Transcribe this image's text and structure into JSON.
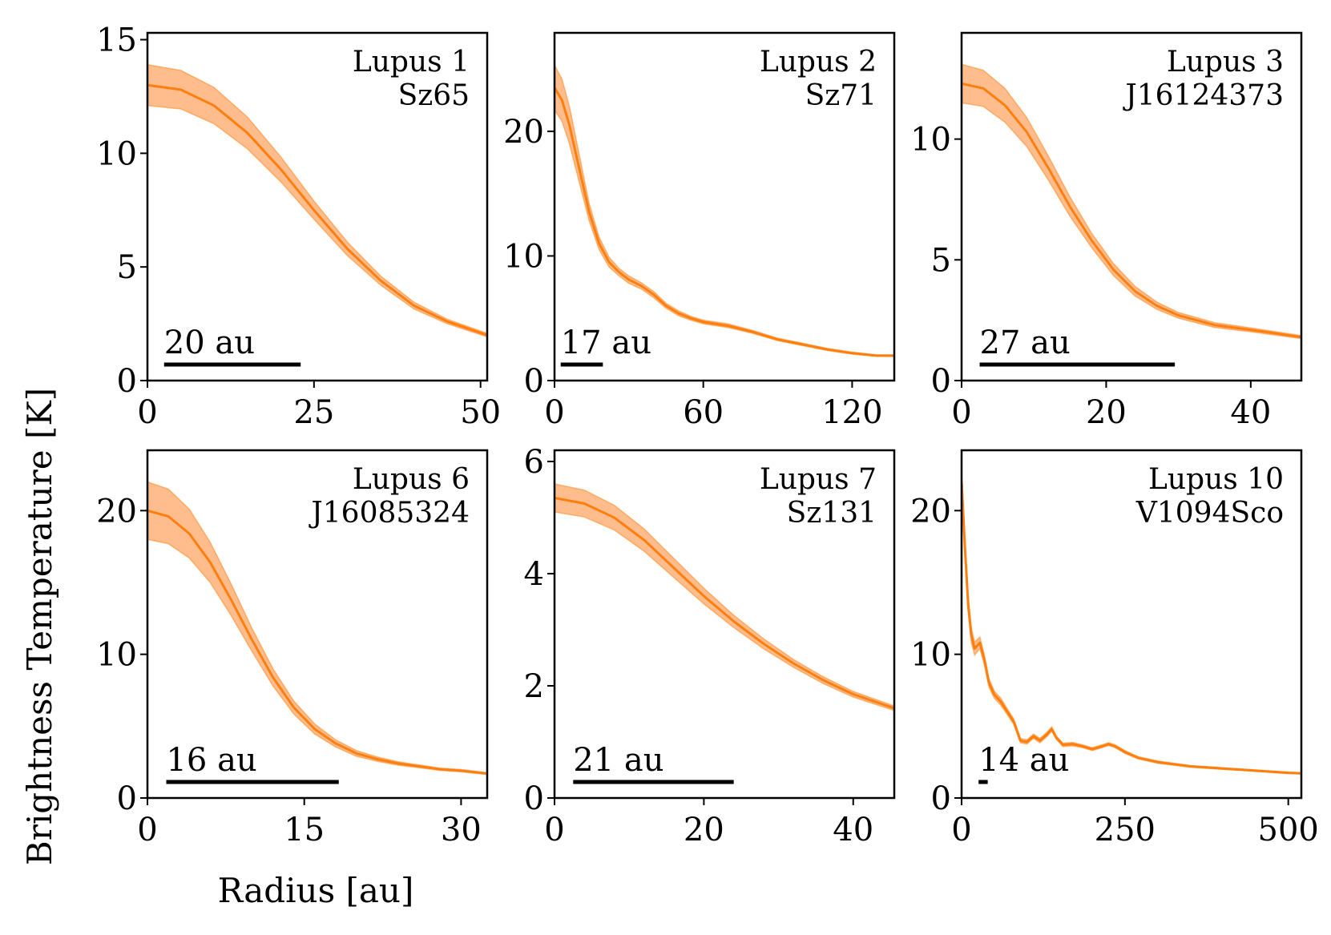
{
  "figure": {
    "ylabel": "Brightness Temperature [K]",
    "xlabel": "Radius [au]"
  },
  "colors": {
    "line": "#ff7f0e",
    "band": "#ffb27a",
    "axes": "#000000"
  },
  "chart_data": [
    {
      "type": "line",
      "title_lines": [
        "Lupus 1",
        "Sz65"
      ],
      "scalebar": {
        "label": "20 au",
        "x_start": 2.5,
        "x_end": 23
      },
      "xlim": [
        0,
        51
      ],
      "ylim": [
        0,
        15.3
      ],
      "xticks": [
        0,
        25,
        50
      ],
      "yticks": [
        0,
        5,
        10,
        15
      ],
      "x": [
        0,
        5,
        10,
        15,
        20,
        25,
        30,
        35,
        40,
        45,
        51
      ],
      "y": [
        13.0,
        12.8,
        12.1,
        10.9,
        9.3,
        7.5,
        5.8,
        4.4,
        3.3,
        2.6,
        2.0
      ],
      "band": [
        0.9,
        0.85,
        0.8,
        0.7,
        0.55,
        0.4,
        0.3,
        0.2,
        0.15,
        0.1,
        0.08
      ]
    },
    {
      "type": "line",
      "title_lines": [
        "Lupus 2",
        "Sz71"
      ],
      "scalebar": {
        "label": "17 au",
        "x_start": 2.5,
        "x_end": 19.5
      },
      "xlim": [
        0,
        137
      ],
      "ylim": [
        0,
        27.9
      ],
      "xticks": [
        0,
        60,
        120
      ],
      "yticks": [
        0,
        10,
        20
      ],
      "x": [
        0,
        3,
        6,
        10,
        14,
        18,
        22,
        26,
        30,
        35,
        40,
        45,
        50,
        55,
        60,
        70,
        80,
        90,
        100,
        110,
        120,
        130,
        137
      ],
      "y": [
        23.5,
        22.5,
        20.5,
        17.0,
        13.5,
        11.0,
        9.5,
        8.7,
        8.1,
        7.6,
        6.9,
        6.0,
        5.4,
        5.0,
        4.7,
        4.4,
        3.9,
        3.3,
        2.9,
        2.5,
        2.2,
        2.0,
        2.0
      ],
      "band": [
        1.8,
        1.7,
        1.5,
        1.1,
        0.7,
        0.5,
        0.4,
        0.3,
        0.3,
        0.25,
        0.25,
        0.2,
        0.2,
        0.15,
        0.15,
        0.15,
        0.12,
        0.1,
        0.1,
        0.08,
        0.08,
        0.06,
        0.06
      ]
    },
    {
      "type": "line",
      "title_lines": [
        "Lupus 3",
        "J16124373"
      ],
      "scalebar": {
        "label": "27 au",
        "x_start": 2.5,
        "x_end": 29.5
      },
      "xlim": [
        0,
        47
      ],
      "ylim": [
        0,
        14.4
      ],
      "xticks": [
        0,
        20,
        40
      ],
      "yticks": [
        0,
        5,
        10
      ],
      "x": [
        0,
        3,
        6,
        9,
        12,
        15,
        18,
        21,
        24,
        27,
        30,
        35,
        40,
        47
      ],
      "y": [
        12.3,
        12.1,
        11.4,
        10.3,
        8.8,
        7.2,
        5.8,
        4.6,
        3.7,
        3.1,
        2.7,
        2.3,
        2.1,
        1.8
      ],
      "band": [
        0.8,
        0.75,
        0.7,
        0.6,
        0.5,
        0.4,
        0.3,
        0.25,
        0.2,
        0.15,
        0.12,
        0.1,
        0.08,
        0.06
      ]
    },
    {
      "type": "line",
      "title_lines": [
        "Lupus 6",
        "J16085324"
      ],
      "scalebar": {
        "label": "16 au",
        "x_start": 1.8,
        "x_end": 18.3
      },
      "xlim": [
        0,
        32.5
      ],
      "ylim": [
        0,
        24.2
      ],
      "xticks": [
        0,
        15,
        30
      ],
      "yticks": [
        0,
        10,
        20
      ],
      "x": [
        0,
        2,
        4,
        6,
        8,
        10,
        12,
        14,
        16,
        18,
        20,
        22,
        24,
        26,
        28,
        30,
        32.5
      ],
      "y": [
        20.0,
        19.6,
        18.4,
        16.4,
        13.8,
        11.0,
        8.4,
        6.3,
        4.8,
        3.8,
        3.1,
        2.7,
        2.4,
        2.2,
        2.0,
        1.9,
        1.7
      ],
      "band": [
        2.0,
        1.9,
        1.7,
        1.4,
        1.1,
        0.8,
        0.6,
        0.45,
        0.35,
        0.25,
        0.2,
        0.15,
        0.12,
        0.1,
        0.08,
        0.08,
        0.06
      ]
    },
    {
      "type": "line",
      "title_lines": [
        "Lupus 7",
        "Sz131"
      ],
      "scalebar": {
        "label": "21 au",
        "x_start": 2.5,
        "x_end": 24
      },
      "xlim": [
        0,
        45.5
      ],
      "ylim": [
        0,
        6.2
      ],
      "xticks": [
        0,
        20,
        40
      ],
      "yticks": [
        0,
        2,
        4,
        6
      ],
      "x": [
        0,
        4,
        8,
        12,
        16,
        20,
        24,
        28,
        32,
        36,
        40,
        45.5
      ],
      "y": [
        5.35,
        5.25,
        5.0,
        4.6,
        4.1,
        3.6,
        3.15,
        2.75,
        2.4,
        2.1,
        1.85,
        1.6
      ],
      "band": [
        0.25,
        0.24,
        0.22,
        0.2,
        0.17,
        0.14,
        0.11,
        0.09,
        0.07,
        0.06,
        0.05,
        0.04
      ]
    },
    {
      "type": "line",
      "title_lines": [
        "Lupus 10",
        "V1094Sco"
      ],
      "scalebar": {
        "label": "14 au",
        "x_start": 26,
        "x_end": 40
      },
      "xlim": [
        0,
        520
      ],
      "ylim": [
        0,
        24.2
      ],
      "xticks": [
        0,
        250,
        500
      ],
      "yticks": [
        0,
        10,
        20
      ],
      "x": [
        0,
        5,
        10,
        15,
        20,
        28,
        35,
        42,
        50,
        60,
        70,
        80,
        90,
        100,
        110,
        120,
        130,
        138,
        145,
        155,
        170,
        185,
        200,
        215,
        225,
        235,
        250,
        270,
        300,
        350,
        400,
        450,
        500,
        520
      ],
      "y": [
        22.0,
        17.5,
        13.5,
        11.3,
        10.4,
        10.8,
        9.6,
        8.0,
        7.2,
        6.7,
        6.0,
        5.3,
        4.0,
        3.9,
        4.3,
        4.0,
        4.4,
        4.8,
        4.2,
        3.7,
        3.75,
        3.6,
        3.4,
        3.6,
        3.75,
        3.6,
        3.2,
        2.8,
        2.5,
        2.2,
        2.05,
        1.9,
        1.75,
        1.72
      ],
      "band": [
        0.8,
        0.7,
        0.6,
        0.5,
        0.45,
        0.4,
        0.35,
        0.3,
        0.25,
        0.25,
        0.2,
        0.2,
        0.15,
        0.15,
        0.15,
        0.15,
        0.15,
        0.15,
        0.12,
        0.12,
        0.12,
        0.1,
        0.1,
        0.1,
        0.1,
        0.1,
        0.1,
        0.08,
        0.08,
        0.06,
        0.06,
        0.05,
        0.05,
        0.05
      ]
    }
  ]
}
